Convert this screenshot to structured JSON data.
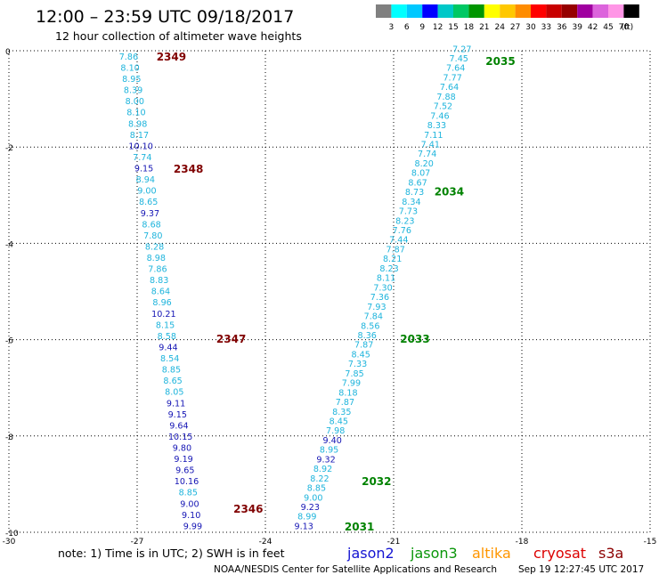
{
  "header": {
    "title": "12:00 – 23:59 UTC 09/18/2017",
    "subtitle": "12 hour collection of altimeter wave heights"
  },
  "legend": {
    "labels": [
      "3",
      "6",
      "9",
      "12",
      "15",
      "18",
      "21",
      "24",
      "27",
      "30",
      "33",
      "36",
      "39",
      "42",
      "45",
      "70",
      "(ft)"
    ],
    "colors": [
      "#808080",
      "#00ffff",
      "#00c8ff",
      "#0000ff",
      "#00c8c8",
      "#00c864",
      "#009600",
      "#ffff00",
      "#ffc800",
      "#ff8c00",
      "#ff0000",
      "#c80000",
      "#960000",
      "#a000a0",
      "#dc64dc",
      "#ff96e6",
      "#000000"
    ]
  },
  "footer": {
    "note": "note: 1) Time is in UTC; 2) SWH is in feet",
    "satellites": [
      {
        "name": "jason2",
        "color": "#1414d2"
      },
      {
        "name": "jason3",
        "color": "#0a960a"
      },
      {
        "name": "altika",
        "color": "#ff9600"
      },
      {
        "name": "cryosat",
        "color": "#dc0000"
      },
      {
        "name": "s3a",
        "color": "#8c0000"
      }
    ],
    "credit": "NOAA/NESDIS Center for Satellite Applications and Research",
    "timestamp": "Sep 19 12:27:45 UTC 2017"
  },
  "chart_data": {
    "type": "scatter",
    "xlim": [
      -30,
      -15
    ],
    "ylim": [
      -10,
      0
    ],
    "x_ticks": [
      "-30",
      "-27",
      "-24",
      "-21",
      "-18",
      "-15"
    ],
    "y_ticks": [
      "0",
      "-2",
      "-4",
      "-6",
      "-8",
      "-10"
    ],
    "grid": "dotted",
    "series": [
      {
        "name": "cryosat",
        "color_light": "#1eb4dc",
        "color_dark": "#1414b4",
        "pass_color": "#800000",
        "passes": [
          {
            "label": "2349",
            "x": -26.2,
            "y": -0.11
          },
          {
            "label": "2348",
            "x": -25.8,
            "y": -2.44
          },
          {
            "label": "2347",
            "x": -24.8,
            "y": -5.97
          },
          {
            "label": "2346",
            "x": -24.4,
            "y": -9.5
          }
        ],
        "start": [
          -27.2,
          -0.11
        ],
        "end": [
          -25.7,
          -9.86
        ],
        "values": [
          "7.86",
          "8.10",
          "8.95",
          "8.39",
          "8.00",
          "8.10",
          "8.98",
          "8.17",
          "10.10",
          "7.74",
          "9.15",
          "8.94",
          "9.00",
          "8.65",
          "9.37",
          "8.68",
          "7.80",
          "8.28",
          "8.98",
          "7.86",
          "8.83",
          "8.64",
          "8.96",
          "10.21",
          "8.15",
          "8.58",
          "9.44",
          "8.54",
          "8.85",
          "8.65",
          "8.05",
          "9.11",
          "9.15",
          "9.64",
          "10.15",
          "9.80",
          "9.19",
          "9.65",
          "10.16",
          "8.85",
          "9.00",
          "9.10",
          "9.99"
        ],
        "dark": [
          8,
          10,
          14,
          23,
          26,
          31,
          32,
          33,
          34,
          35,
          36,
          37,
          38,
          40,
          41,
          42
        ]
      },
      {
        "name": "jason3",
        "color_light": "#1eb4dc",
        "color_dark": "#1414b4",
        "pass_color": "#008200",
        "passes": [
          {
            "label": "2035",
            "x": -18.5,
            "y": -0.2
          },
          {
            "label": "2034",
            "x": -19.7,
            "y": -2.91
          },
          {
            "label": "2033",
            "x": -20.5,
            "y": -5.97
          },
          {
            "label": "2032",
            "x": -21.4,
            "y": -8.93
          },
          {
            "label": "2031",
            "x": -21.8,
            "y": -9.87
          }
        ],
        "start": [
          -19.4,
          0.05
        ],
        "end": [
          -23.1,
          -9.86
        ],
        "values": [
          "7.27",
          "7.45",
          "7.64",
          "7.77",
          "7.64",
          "7.88",
          "7.52",
          "7.46",
          "8.33",
          "7.11",
          "7.41",
          "7.74",
          "8.20",
          "8.07",
          "8.67",
          "8.73",
          "8.34",
          "7.73",
          "8.23",
          "7.76",
          "7.44",
          "7.87",
          "8.21",
          "8.23",
          "8.11",
          "7.30",
          "7.36",
          "7.93",
          "7.84",
          "8.56",
          "8.36",
          "7.87",
          "8.45",
          "7.33",
          "7.85",
          "7.99",
          "8.18",
          "7.87",
          "8.35",
          "8.45",
          "7.98",
          "9.40",
          "8.95",
          "9.32",
          "8.92",
          "8.22",
          "8.85",
          "9.00",
          "9.23",
          "8.99",
          "9.13"
        ],
        "dark": [
          41,
          43,
          48,
          50
        ]
      }
    ]
  }
}
